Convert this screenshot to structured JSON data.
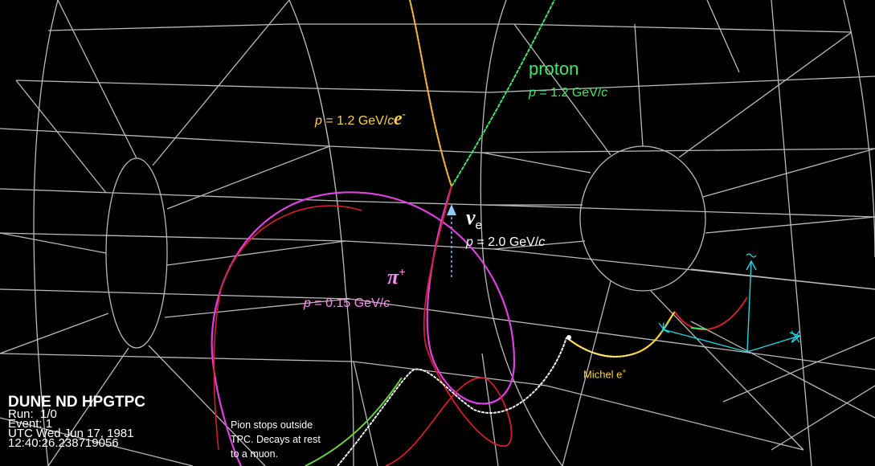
{
  "event_display": {
    "title": "DUNE ND HPGTPC",
    "run_label": "Run:",
    "run_value": "1/0",
    "event_label": "Event:",
    "event_value": "1",
    "date": "UTC Wed Jun 17, 1981",
    "time": "12:40:26.238719056"
  },
  "particles": {
    "electron": {
      "symbol": "e",
      "sup": "-",
      "p_var": "p",
      "p_text": " = 1.2 GeV/",
      "p_unit": "c",
      "color": "#ffd23c"
    },
    "proton": {
      "name": "proton",
      "p_var": "p",
      "p_text": " = 1.2 GeV/",
      "p_unit": "c",
      "color": "#3ee66a"
    },
    "neutrino": {
      "symbol": "ν",
      "sub": "e",
      "p_var": "p",
      "p_text": " = 2.0 GeV/",
      "p_unit": "c",
      "color": "#ffffff",
      "arrow_color": "#8ec9ff"
    },
    "pion": {
      "symbol": "π",
      "sup": "+",
      "p_var": "p",
      "p_text": " = 0.15 GeV/",
      "p_unit": "c",
      "color": "#ff8cf0"
    },
    "michel": {
      "text": "Michel e",
      "sup": "+",
      "color": "#ffd23c"
    }
  },
  "annotations": {
    "pion_note_line1": "Pion stops outside",
    "pion_note_line2": "TPC.  Decays at rest",
    "pion_note_line3": "to a muon."
  },
  "colors": {
    "background": "#000000",
    "geometry": "#d8d8d8",
    "pion_track": "#e040e0",
    "muon_track": "#d0202a",
    "axes": "#1fd6e0"
  }
}
